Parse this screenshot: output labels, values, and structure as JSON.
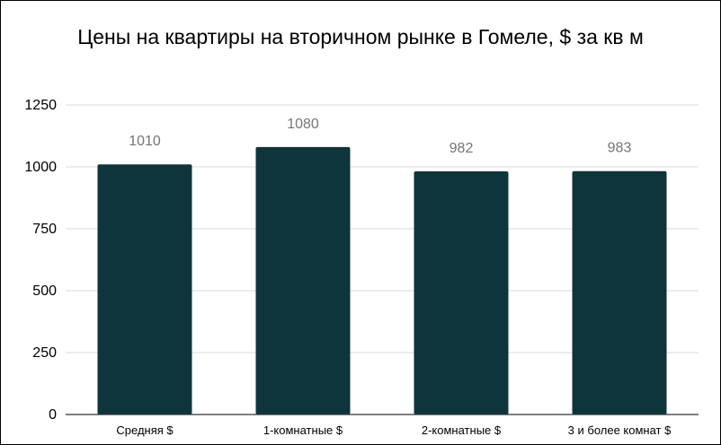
{
  "chart_data": {
    "type": "bar",
    "title": "Цены на квартиры на вторичном рынке в Гомеле, $ за кв м",
    "categories": [
      "Средняя $",
      "1-комнатные $",
      "2-комнатные $",
      "3 и более комнат $"
    ],
    "series": [
      {
        "values": [
          1010,
          1080,
          982,
          983
        ]
      }
    ],
    "data_labels": [
      "1010",
      "1080",
      "982",
      "983"
    ],
    "y_ticks": [
      0,
      250,
      500,
      750,
      1000,
      1250
    ],
    "ylim": [
      0,
      1250
    ],
    "xlabel": "",
    "ylabel": "",
    "grid": true,
    "legend": "none",
    "bar_color": "#0d353b",
    "gridline_color": "#d9d9d9",
    "axis_color": "#333333",
    "data_label_color": "#757575"
  }
}
